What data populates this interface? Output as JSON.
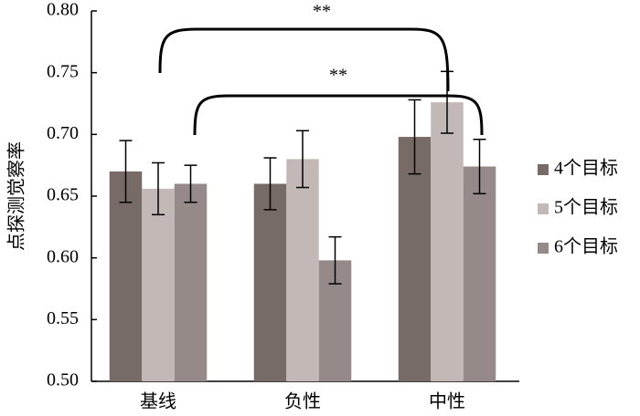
{
  "chart_data": {
    "type": "bar",
    "ylabel": "点探测觉察率",
    "categories": [
      "基线",
      "负性",
      "中性"
    ],
    "series": [
      {
        "name": "4个目标",
        "color": "#776b67",
        "values": [
          0.67,
          0.66,
          0.698
        ],
        "errors": [
          0.025,
          0.021,
          0.03
        ]
      },
      {
        "name": "5个目标",
        "color": "#c2b9b6",
        "values": [
          0.656,
          0.68,
          0.726
        ],
        "errors": [
          0.021,
          0.023,
          0.025
        ]
      },
      {
        "name": "6个目标",
        "color": "#958a88",
        "values": [
          0.66,
          0.598,
          0.674
        ],
        "errors": [
          0.015,
          0.019,
          0.022
        ]
      }
    ],
    "ylim": [
      0.5,
      0.8
    ],
    "yticks": [
      {
        "value": 0.5,
        "label": "0.50"
      },
      {
        "value": 0.55,
        "label": "0.55"
      },
      {
        "value": 0.6,
        "label": "0.60"
      },
      {
        "value": 0.65,
        "label": "0.65"
      },
      {
        "value": 0.7,
        "label": "0.70"
      },
      {
        "value": 0.75,
        "label": "0.75"
      },
      {
        "value": 0.8,
        "label": "0.80"
      }
    ],
    "annotations": [
      "**",
      "**"
    ]
  }
}
